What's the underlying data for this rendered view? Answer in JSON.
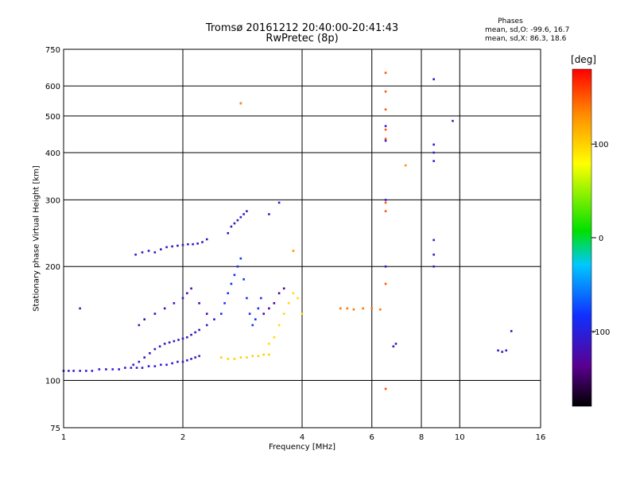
{
  "chart_data": {
    "type": "scatter",
    "title": "Tromsø 20161212 20:40:00-20:41:43",
    "subtitle": "RwPretec (8p)",
    "xlabel": "Frequency [MHz]",
    "ylabel": "Stationary phase Virtual Height [km]",
    "x_scale": "log",
    "y_scale": "log",
    "xlim": [
      1,
      16
    ],
    "ylim": [
      75,
      750
    ],
    "x_ticks": [
      1,
      2,
      4,
      6,
      8,
      10,
      16
    ],
    "x_tick_labels": [
      "1",
      "2",
      "4",
      "6",
      "8",
      "10",
      "16"
    ],
    "y_ticks": [
      75,
      100,
      200,
      300,
      400,
      500,
      600,
      750
    ],
    "y_tick_labels": [
      "75",
      "100",
      "200",
      "300",
      "400",
      "500",
      "600",
      "750"
    ],
    "grid": true,
    "phase_stats": {
      "header": "Phases",
      "o_mode": "mean, sd,O: -99.6, 16.7",
      "x_mode": "mean, sd,X:  86.3, 18.6"
    },
    "colorbar": {
      "label": "[deg]",
      "range": [
        -180,
        180
      ],
      "ticks": [
        100,
        0,
        -100
      ],
      "tick_labels": [
        "100",
        "0",
        "-100"
      ]
    },
    "series": [
      {
        "x": [
          1.0,
          1.03,
          1.06,
          1.1,
          1.14,
          1.18,
          1.23,
          1.28,
          1.33,
          1.38,
          1.43,
          1.48,
          1.53,
          1.58,
          1.64,
          1.7,
          1.76,
          1.82,
          1.88,
          1.94,
          2.0,
          2.05,
          2.1,
          2.15,
          2.2
        ],
        "y": [
          106,
          106,
          106,
          106,
          106,
          106,
          107,
          107,
          107,
          107,
          108,
          108,
          108,
          108,
          109,
          109,
          110,
          110,
          111,
          112,
          112,
          113,
          114,
          115,
          116
        ],
        "phase": -108
      },
      {
        "x": [
          1.5,
          1.55,
          1.6,
          1.65,
          1.7,
          1.75,
          1.8,
          1.85,
          1.9,
          1.95,
          2.0,
          2.05,
          2.1,
          2.15,
          2.2,
          2.3,
          2.4
        ],
        "y": [
          110,
          112,
          115,
          118,
          121,
          123,
          125,
          126,
          127,
          128,
          129,
          130,
          132,
          134,
          136,
          140,
          145
        ],
        "phase": -112
      },
      {
        "x": [
          1.55,
          1.6,
          1.7,
          1.8,
          1.9,
          2.0,
          2.05,
          2.1,
          2.2,
          2.3
        ],
        "y": [
          140,
          145,
          150,
          155,
          160,
          165,
          170,
          175,
          160,
          150
        ],
        "phase": -125
      },
      {
        "x": [
          1.52,
          1.58,
          1.64,
          1.7,
          1.76,
          1.82,
          1.88,
          1.94,
          2.0,
          2.06,
          2.12,
          2.18,
          2.24,
          2.3
        ],
        "y": [
          215,
          218,
          220,
          218,
          222,
          225,
          226,
          227,
          228,
          229,
          229,
          230,
          232,
          236
        ],
        "phase": -112
      },
      {
        "x": [
          2.5,
          2.55,
          2.6,
          2.65,
          2.7,
          2.75,
          2.8,
          2.85,
          2.9,
          2.95,
          3.0,
          3.05,
          3.1,
          3.15
        ],
        "y": [
          150,
          160,
          170,
          180,
          190,
          200,
          210,
          185,
          165,
          150,
          140,
          145,
          155,
          165
        ],
        "phase": -85
      },
      {
        "x": [
          2.6,
          2.65,
          2.7,
          2.75,
          2.8,
          2.85,
          2.9
        ],
        "y": [
          245,
          255,
          260,
          265,
          270,
          275,
          280
        ],
        "phase": -112
      },
      {
        "x": [
          2.5,
          2.6,
          2.7,
          2.8,
          2.9,
          3.0,
          3.1,
          3.2,
          3.3
        ],
        "y": [
          115,
          114,
          114,
          115,
          115,
          116,
          116,
          117,
          117
        ],
        "phase": 100
      },
      {
        "x": [
          3.3,
          3.4,
          3.5,
          3.6,
          3.7,
          3.8,
          3.9,
          4.0
        ],
        "y": [
          125,
          130,
          140,
          150,
          160,
          170,
          165,
          150
        ],
        "phase": 95
      },
      {
        "x": [
          3.2,
          3.3,
          3.4,
          3.5,
          3.6
        ],
        "y": [
          150,
          155,
          160,
          170,
          175
        ],
        "phase": -135
      },
      {
        "x": [
          5.0,
          5.2,
          5.4,
          5.7,
          6.0,
          6.3
        ],
        "y": [
          155,
          155,
          154,
          155,
          155,
          154
        ],
        "phase": 140
      },
      {
        "x": [
          6.5,
          6.5,
          6.5,
          6.5,
          6.5,
          6.5,
          6.5,
          6.5,
          6.5
        ],
        "y": [
          95,
          180,
          280,
          295,
          460,
          520,
          580,
          650,
          435
        ],
        "phase": 150
      },
      {
        "x": [
          6.5,
          6.5,
          6.5,
          6.5
        ],
        "y": [
          200,
          300,
          430,
          470
        ],
        "phase": -105
      },
      {
        "x": [
          8.6,
          8.6,
          8.6,
          8.6,
          8.6,
          8.6,
          8.6
        ],
        "y": [
          200,
          215,
          235,
          380,
          400,
          420,
          625
        ],
        "phase": -110
      },
      {
        "x": [
          6.8,
          6.9,
          9.6,
          12.5,
          12.8,
          13.1,
          13.5
        ],
        "y": [
          123,
          125,
          485,
          120,
          119,
          120,
          135
        ],
        "phase": -115
      },
      {
        "x": [
          1.1,
          1.7,
          2.8,
          3.3,
          3.5
        ],
        "y": [
          155,
          150,
          540,
          275,
          295
        ],
        "phase": -105
      },
      {
        "x": [
          7.3,
          3.8,
          2.8
        ],
        "y": [
          370,
          220,
          540
        ],
        "phase": 130
      }
    ]
  }
}
